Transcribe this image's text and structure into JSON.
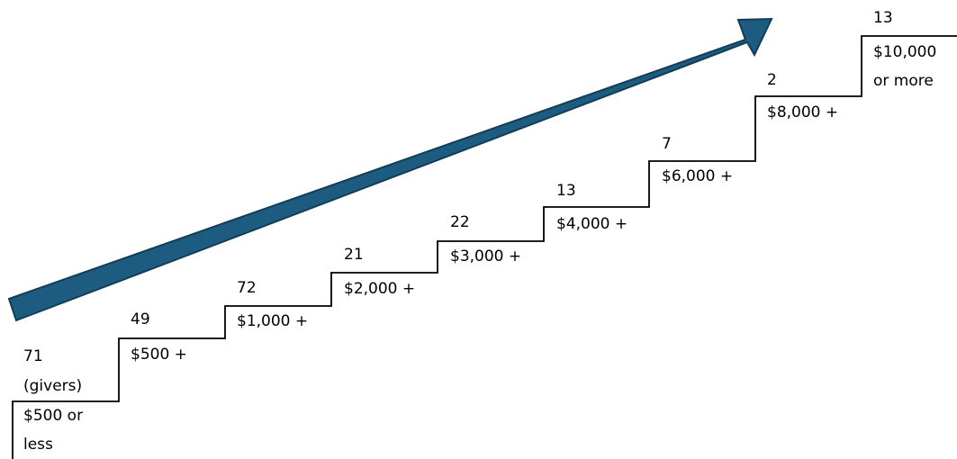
{
  "colors": {
    "arrow_fill": "#1d5c80",
    "arrow_stroke": "#123d57",
    "stair_line": "#000000",
    "text": "#000000"
  },
  "steps": [
    {
      "count": "71",
      "count_extra": "(givers)",
      "range_lines": [
        "$500 or",
        "less"
      ]
    },
    {
      "count": "49",
      "range_lines": [
        "$500 +"
      ]
    },
    {
      "count": "72",
      "range_lines": [
        "$1,000 +"
      ]
    },
    {
      "count": "21",
      "range_lines": [
        "$2,000 +"
      ]
    },
    {
      "count": "22",
      "range_lines": [
        "$3,000 +"
      ]
    },
    {
      "count": "13",
      "range_lines": [
        "$4,000 +"
      ]
    },
    {
      "count": "7",
      "range_lines": [
        "$6,000 +"
      ]
    },
    {
      "count": "2",
      "range_lines": [
        "$8,000 +"
      ]
    },
    {
      "count": "13",
      "range_lines": [
        "$10,000",
        "or more"
      ]
    }
  ]
}
